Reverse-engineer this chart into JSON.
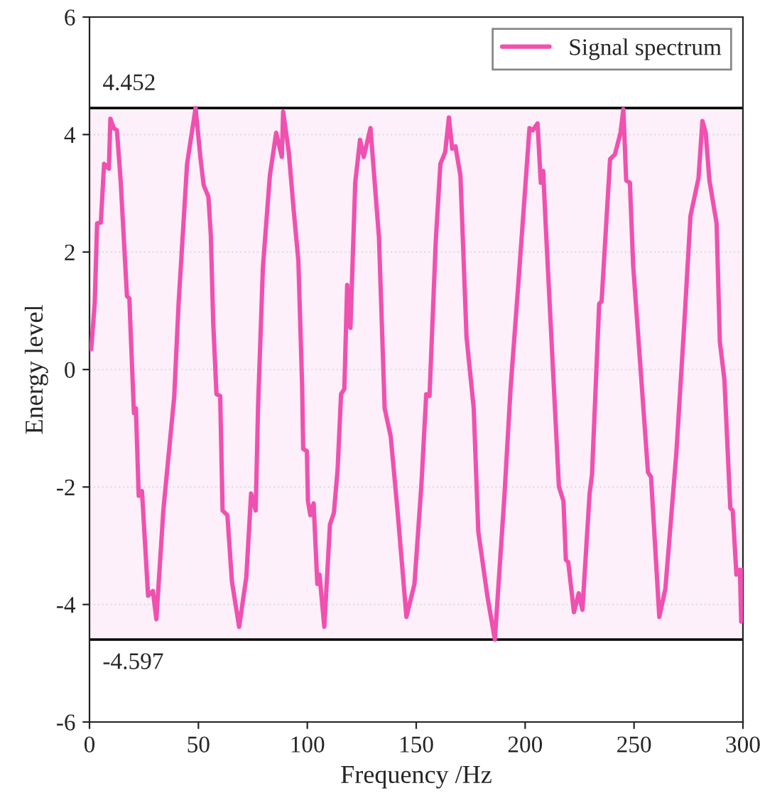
{
  "chart_data": {
    "type": "line",
    "xlabel": "Frequency /Hz",
    "ylabel": "Energy level",
    "xlim": [
      0,
      300
    ],
    "ylim": [
      -6,
      6
    ],
    "xticks": [
      0,
      50,
      100,
      150,
      200,
      250,
      300
    ],
    "yticks": [
      -6,
      -4,
      -2,
      0,
      2,
      4,
      6
    ],
    "grid": "y",
    "legend": "top right",
    "line_style": "solid",
    "marker": "none",
    "ref_lines": [
      {
        "axis": "y",
        "value": 4.452,
        "label": "4.452",
        "color": "#000000"
      },
      {
        "axis": "y",
        "value": -4.597,
        "label": "-4.597",
        "color": "#000000"
      }
    ],
    "bands": [
      {
        "axis": "y",
        "from": -4.597,
        "to": 4.452,
        "color": "#fdf0fa"
      }
    ],
    "series": [
      {
        "name": "Signal spectrum",
        "color": "#f050b0",
        "x": [
          0.8,
          2.4,
          3.5,
          5.2,
          6.7,
          8.9,
          9.6,
          11.1,
          12.6,
          14.3,
          17.2,
          18.3,
          20.4,
          21.3,
          22.6,
          24.1,
          26.9,
          29.1,
          30.7,
          33.9,
          38.9,
          40.9,
          44.8,
          48.7,
          50.9,
          52.4,
          54.6,
          55.7,
          56.8,
          58.3,
          60.0,
          61.1,
          63.3,
          65.4,
          68.7,
          72.0,
          74.2,
          76.3,
          77.4,
          79.6,
          82.8,
          85.7,
          88.3,
          88.9,
          91.5,
          93.7,
          95.9,
          97.6,
          98.1,
          99.8,
          100.3,
          101.4,
          102.9,
          104.6,
          105.6,
          107.8,
          110.4,
          112.2,
          113.9,
          115.5,
          117.0,
          118.3,
          119.8,
          122.0,
          124.2,
          125.9,
          129.0,
          132.9,
          135.5,
          138.3,
          141.5,
          145.5,
          149.2,
          152.4,
          154.6,
          156.1,
          159.0,
          161.1,
          163.3,
          165.0,
          166.5,
          168.0,
          170.3,
          173.1,
          176.4,
          178.5,
          182.8,
          186.1,
          190.5,
          193.3,
          197.0,
          202.0,
          203.5,
          205.7,
          207.2,
          208.3,
          209.4,
          215.5,
          217.6,
          218.7,
          219.8,
          222.4,
          224.6,
          226.3,
          229.6,
          230.7,
          234.0,
          235.1,
          239.0,
          241.2,
          243.8,
          245.1,
          246.4,
          248.1,
          249.6,
          256.4,
          257.8,
          261.6,
          264.4,
          269.4,
          273.1,
          275.9,
          279.6,
          281.4,
          282.9,
          284.6,
          287.9,
          289.4,
          291.5,
          294.2,
          295.3,
          297.0,
          298.6,
          299.2,
          299.9
        ],
        "values": [
          0.35,
          1.13,
          2.49,
          2.5,
          3.5,
          3.42,
          4.27,
          4.11,
          4.07,
          3.22,
          1.25,
          1.21,
          -0.74,
          -0.66,
          -2.15,
          -2.07,
          -3.85,
          -3.77,
          -4.25,
          -2.4,
          -0.46,
          1.12,
          3.5,
          4.45,
          3.62,
          3.14,
          2.94,
          2.29,
          0.8,
          -0.42,
          -0.45,
          -2.4,
          -2.48,
          -3.61,
          -4.38,
          -3.53,
          -2.11,
          -2.4,
          -0.62,
          1.73,
          3.3,
          4.03,
          3.62,
          4.39,
          3.7,
          2.73,
          1.85,
          -0.25,
          -1.35,
          -1.39,
          -2.24,
          -2.48,
          -2.28,
          -3.65,
          -3.49,
          -4.38,
          -2.64,
          -2.44,
          -1.71,
          -0.42,
          -0.33,
          1.44,
          0.71,
          3.18,
          3.91,
          3.62,
          4.11,
          2.25,
          -0.66,
          -1.14,
          -2.44,
          -4.21,
          -3.65,
          -1.95,
          -0.42,
          -0.45,
          2.21,
          3.5,
          3.7,
          4.29,
          3.76,
          3.8,
          3.3,
          0.55,
          -0.66,
          -2.76,
          -3.89,
          -4.597,
          -2.15,
          -0.33,
          1.52,
          4.11,
          4.07,
          4.19,
          3.18,
          3.38,
          2.49,
          -1.99,
          -2.24,
          -3.24,
          -3.28,
          -4.13,
          -3.81,
          -4.09,
          -2.11,
          -1.79,
          1.12,
          1.16,
          3.58,
          3.66,
          4.03,
          4.43,
          3.22,
          3.18,
          1.77,
          -1.75,
          -1.83,
          -4.21,
          -3.73,
          -1.43,
          0.8,
          2.61,
          3.26,
          4.23,
          4.03,
          3.22,
          2.49,
          0.47,
          -0.18,
          -2.36,
          -2.4,
          -3.49,
          -3.41,
          -4.29,
          -3.41
        ]
      }
    ]
  }
}
